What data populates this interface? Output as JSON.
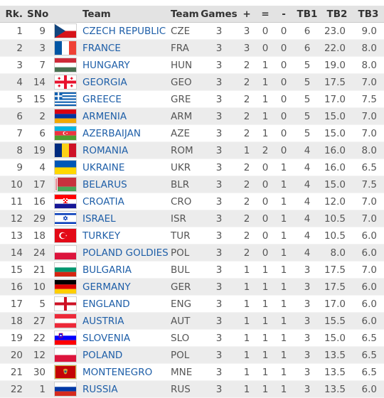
{
  "table": {
    "headers": {
      "rank": "Rk.",
      "sno": "SNo",
      "flag": "",
      "team": "Team",
      "code": "Team",
      "games": "Games",
      "plus": "+",
      "equal": "=",
      "minus": "-",
      "tb1": "TB1",
      "tb2": "TB2",
      "tb3": "TB3"
    },
    "rows": [
      {
        "rank": "1",
        "sno": "9",
        "flag": "czech-flag-icon",
        "team": "CZECH REPUBLIC",
        "code": "CZE",
        "games": "3",
        "plus": "3",
        "equal": "0",
        "minus": "0",
        "tb1": "6",
        "tb2": "23.0",
        "tb3": "9.0"
      },
      {
        "rank": "2",
        "sno": "3",
        "flag": "france-flag-icon",
        "team": "FRANCE",
        "code": "FRA",
        "games": "3",
        "plus": "3",
        "equal": "0",
        "minus": "0",
        "tb1": "6",
        "tb2": "22.0",
        "tb3": "8.0"
      },
      {
        "rank": "3",
        "sno": "7",
        "flag": "hungary-flag-icon",
        "team": "HUNGARY",
        "code": "HUN",
        "games": "3",
        "plus": "2",
        "equal": "1",
        "minus": "0",
        "tb1": "5",
        "tb2": "19.0",
        "tb3": "8.0"
      },
      {
        "rank": "4",
        "sno": "14",
        "flag": "georgia-flag-icon",
        "team": "GEORGIA",
        "code": "GEO",
        "games": "3",
        "plus": "2",
        "equal": "1",
        "minus": "0",
        "tb1": "5",
        "tb2": "17.5",
        "tb3": "7.0"
      },
      {
        "rank": "5",
        "sno": "15",
        "flag": "greece-flag-icon",
        "team": "GREECE",
        "code": "GRE",
        "games": "3",
        "plus": "2",
        "equal": "1",
        "minus": "0",
        "tb1": "5",
        "tb2": "17.0",
        "tb3": "7.5"
      },
      {
        "rank": "6",
        "sno": "2",
        "flag": "armenia-flag-icon",
        "team": "ARMENIA",
        "code": "ARM",
        "games": "3",
        "plus": "2",
        "equal": "1",
        "minus": "0",
        "tb1": "5",
        "tb2": "15.0",
        "tb3": "7.0"
      },
      {
        "rank": "7",
        "sno": "6",
        "flag": "azerbaijan-flag-icon",
        "team": "AZERBAIJAN",
        "code": "AZE",
        "games": "3",
        "plus": "2",
        "equal": "1",
        "minus": "0",
        "tb1": "5",
        "tb2": "15.0",
        "tb3": "7.0"
      },
      {
        "rank": "8",
        "sno": "19",
        "flag": "romania-flag-icon",
        "team": "ROMANIA",
        "code": "ROM",
        "games": "3",
        "plus": "1",
        "equal": "2",
        "minus": "0",
        "tb1": "4",
        "tb2": "16.0",
        "tb3": "8.0"
      },
      {
        "rank": "9",
        "sno": "4",
        "flag": "ukraine-flag-icon",
        "team": "UKRAINE",
        "code": "UKR",
        "games": "3",
        "plus": "2",
        "equal": "0",
        "minus": "1",
        "tb1": "4",
        "tb2": "16.0",
        "tb3": "6.5"
      },
      {
        "rank": "10",
        "sno": "17",
        "flag": "belarus-flag-icon",
        "team": "BELARUS",
        "code": "BLR",
        "games": "3",
        "plus": "2",
        "equal": "0",
        "minus": "1",
        "tb1": "4",
        "tb2": "15.0",
        "tb3": "7.5"
      },
      {
        "rank": "11",
        "sno": "16",
        "flag": "croatia-flag-icon",
        "team": "CROATIA",
        "code": "CRO",
        "games": "3",
        "plus": "2",
        "equal": "0",
        "minus": "1",
        "tb1": "4",
        "tb2": "12.0",
        "tb3": "7.0"
      },
      {
        "rank": "12",
        "sno": "29",
        "flag": "israel-flag-icon",
        "team": "ISRAEL",
        "code": "ISR",
        "games": "3",
        "plus": "2",
        "equal": "0",
        "minus": "1",
        "tb1": "4",
        "tb2": "10.5",
        "tb3": "7.0"
      },
      {
        "rank": "13",
        "sno": "18",
        "flag": "turkey-flag-icon",
        "team": "TURKEY",
        "code": "TUR",
        "games": "3",
        "plus": "2",
        "equal": "0",
        "minus": "1",
        "tb1": "4",
        "tb2": "10.5",
        "tb3": "6.0"
      },
      {
        "rank": "14",
        "sno": "24",
        "flag": "poland-flag-icon",
        "team": "POLAND GOLDIES",
        "code": "POL",
        "games": "3",
        "plus": "2",
        "equal": "0",
        "minus": "1",
        "tb1": "4",
        "tb2": "8.0",
        "tb3": "6.0"
      },
      {
        "rank": "15",
        "sno": "21",
        "flag": "bulgaria-flag-icon",
        "team": "BULGARIA",
        "code": "BUL",
        "games": "3",
        "plus": "1",
        "equal": "1",
        "minus": "1",
        "tb1": "3",
        "tb2": "17.5",
        "tb3": "7.0"
      },
      {
        "rank": "16",
        "sno": "10",
        "flag": "germany-flag-icon",
        "team": "GERMANY",
        "code": "GER",
        "games": "3",
        "plus": "1",
        "equal": "1",
        "minus": "1",
        "tb1": "3",
        "tb2": "17.5",
        "tb3": "6.0"
      },
      {
        "rank": "17",
        "sno": "5",
        "flag": "england-flag-icon",
        "team": "ENGLAND",
        "code": "ENG",
        "games": "3",
        "plus": "1",
        "equal": "1",
        "minus": "1",
        "tb1": "3",
        "tb2": "17.0",
        "tb3": "6.0"
      },
      {
        "rank": "18",
        "sno": "27",
        "flag": "austria-flag-icon",
        "team": "AUSTRIA",
        "code": "AUT",
        "games": "3",
        "plus": "1",
        "equal": "1",
        "minus": "1",
        "tb1": "3",
        "tb2": "15.5",
        "tb3": "6.0"
      },
      {
        "rank": "19",
        "sno": "22",
        "flag": "slovenia-flag-icon",
        "team": "SLOVENIA",
        "code": "SLO",
        "games": "3",
        "plus": "1",
        "equal": "1",
        "minus": "1",
        "tb1": "3",
        "tb2": "15.0",
        "tb3": "6.5"
      },
      {
        "rank": "20",
        "sno": "12",
        "flag": "poland-flag-icon",
        "team": "POLAND",
        "code": "POL",
        "games": "3",
        "plus": "1",
        "equal": "1",
        "minus": "1",
        "tb1": "3",
        "tb2": "13.5",
        "tb3": "6.5"
      },
      {
        "rank": "21",
        "sno": "30",
        "flag": "montenegro-flag-icon",
        "team": "MONTENEGRO",
        "code": "MNE",
        "games": "3",
        "plus": "1",
        "equal": "1",
        "minus": "1",
        "tb1": "3",
        "tb2": "13.5",
        "tb3": "6.5"
      },
      {
        "rank": "22",
        "sno": "1",
        "flag": "russia-flag-icon",
        "team": "RUSSIA",
        "code": "RUS",
        "games": "3",
        "plus": "1",
        "equal": "1",
        "minus": "1",
        "tb1": "3",
        "tb2": "13.5",
        "tb3": "6.0"
      }
    ]
  },
  "colors": {
    "header_bg": "#e3e3e3",
    "row_alt_bg": "#ececec",
    "link": "#1f5fa8",
    "text": "#555555"
  }
}
